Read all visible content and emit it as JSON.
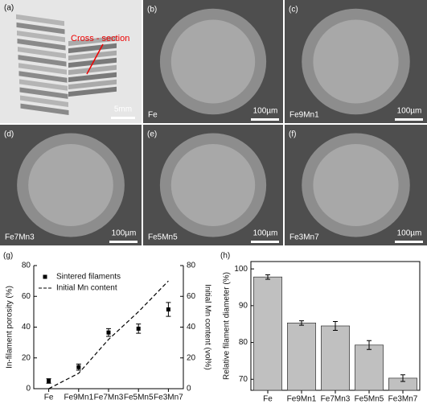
{
  "image_panels": [
    {
      "label": "(a)",
      "annotation": "Cross - section",
      "scale": "5mm"
    },
    {
      "label": "(b)",
      "caption": "Fe",
      "scale": "100µm"
    },
    {
      "label": "(c)",
      "caption": "Fe9Mn1",
      "scale": "100µm"
    },
    {
      "label": "(d)",
      "caption": "Fe7Mn3",
      "scale": "100µm"
    },
    {
      "label": "(e)",
      "caption": "Fe5Mn5",
      "scale": "100µm"
    },
    {
      "label": "(f)",
      "caption": "Fe3Mn7",
      "scale": "100µm"
    }
  ],
  "chart_data": [
    {
      "type": "line",
      "panel_label": "(g)",
      "y_label": "In-filament porosity (%)",
      "y2_label": "Initial Mn content (vol%)",
      "categories": [
        "Fe",
        "Fe9Mn1",
        "Fe7Mn3",
        "Fe5Mn5",
        "Fe3Mn7"
      ],
      "ylim": [
        0,
        80
      ],
      "yticks": [
        0,
        20,
        40,
        60,
        80
      ],
      "y2lim": [
        0,
        80
      ],
      "y2ticks": [
        0,
        20,
        40,
        60,
        80
      ],
      "legend": "upper left",
      "series": [
        {
          "name": "Sintered filaments",
          "color": "#000000",
          "style": "points",
          "values": [
            5,
            14,
            36.5,
            39,
            51.5
          ],
          "errors": [
            1.5,
            2,
            2.5,
            3,
            4.5
          ]
        },
        {
          "name": "Initial Mn content",
          "color": "#000000",
          "style": "dashed",
          "axis": "y2",
          "values": [
            0,
            10,
            32,
            50,
            70
          ]
        }
      ]
    },
    {
      "type": "bar",
      "panel_label": "(h)",
      "y_label": "Relative filament diameter (%)",
      "categories": [
        "Fe",
        "Fe9Mn1",
        "Fe7Mn3",
        "Fe5Mn5",
        "Fe3Mn7"
      ],
      "ylim": [
        67,
        102
      ],
      "yticks": [
        70,
        80,
        90,
        100
      ],
      "color": "#c0c0c0",
      "values": [
        97.8,
        85.3,
        84.5,
        79.3,
        70.3
      ],
      "errors": [
        0.6,
        0.6,
        1.2,
        1.2,
        0.9
      ]
    }
  ]
}
